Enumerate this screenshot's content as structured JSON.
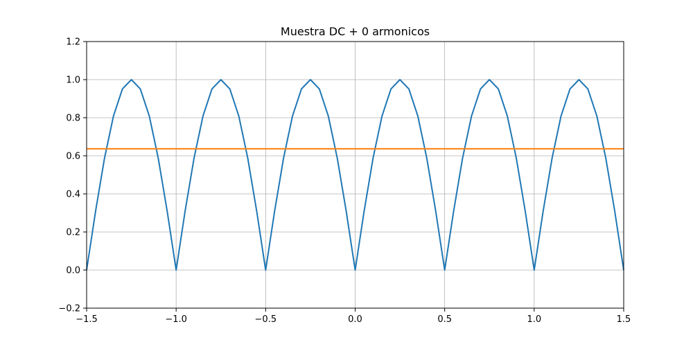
{
  "chart_data": {
    "type": "line",
    "title": "Muestra DC + 0 armonicos",
    "xlabel": "",
    "ylabel": "",
    "xlim": [
      -1.5,
      1.5
    ],
    "ylim": [
      -0.2,
      1.2
    ],
    "grid": true,
    "xticks": [
      -1.5,
      -1.0,
      -0.5,
      0.0,
      0.5,
      1.0,
      1.5
    ],
    "xtick_labels": [
      "−1.5",
      "−1.0",
      "−0.5",
      "0.0",
      "0.5",
      "1.0",
      "1.5"
    ],
    "yticks": [
      -0.2,
      0.0,
      0.2,
      0.4,
      0.6,
      0.8,
      1.0,
      1.2
    ],
    "ytick_labels": [
      "−0.2",
      "0.0",
      "0.2",
      "0.4",
      "0.6",
      "0.8",
      "1.0",
      "1.2"
    ],
    "series": [
      {
        "color": "#1f77b4",
        "x": [
          -1.5,
          -1.45,
          -1.4,
          -1.35,
          -1.3,
          -1.25,
          -1.2,
          -1.15,
          -1.1,
          -1.05,
          -1.0,
          -0.95,
          -0.9,
          -0.85,
          -0.8,
          -0.75,
          -0.7,
          -0.65,
          -0.6,
          -0.55,
          -0.5,
          -0.45,
          -0.4,
          -0.35,
          -0.3,
          -0.25,
          -0.2,
          -0.15,
          -0.1,
          -0.05,
          0.0,
          0.05,
          0.1,
          0.15,
          0.2,
          0.25,
          0.3,
          0.35,
          0.4,
          0.45,
          0.5,
          0.55,
          0.6,
          0.65,
          0.7,
          0.75,
          0.8,
          0.85,
          0.9,
          0.95,
          1.0,
          1.05,
          1.1,
          1.15,
          1.2,
          1.25,
          1.3,
          1.35,
          1.4,
          1.45,
          1.5
        ],
        "y": [
          0.0,
          0.309,
          0.588,
          0.809,
          0.951,
          1.0,
          0.951,
          0.809,
          0.588,
          0.309,
          0.0,
          0.309,
          0.588,
          0.809,
          0.951,
          1.0,
          0.951,
          0.809,
          0.588,
          0.309,
          0.0,
          0.309,
          0.588,
          0.809,
          0.951,
          1.0,
          0.951,
          0.809,
          0.588,
          0.309,
          0.0,
          0.309,
          0.588,
          0.809,
          0.951,
          1.0,
          0.951,
          0.809,
          0.588,
          0.309,
          0.0,
          0.309,
          0.588,
          0.809,
          0.951,
          1.0,
          0.951,
          0.809,
          0.588,
          0.309,
          0.0,
          0.309,
          0.588,
          0.809,
          0.951,
          1.0,
          0.951,
          0.809,
          0.588,
          0.309,
          0.0
        ]
      },
      {
        "color": "#ff7f0e",
        "x": [
          -1.5,
          1.5
        ],
        "y": [
          0.6366,
          0.6366
        ]
      }
    ]
  }
}
